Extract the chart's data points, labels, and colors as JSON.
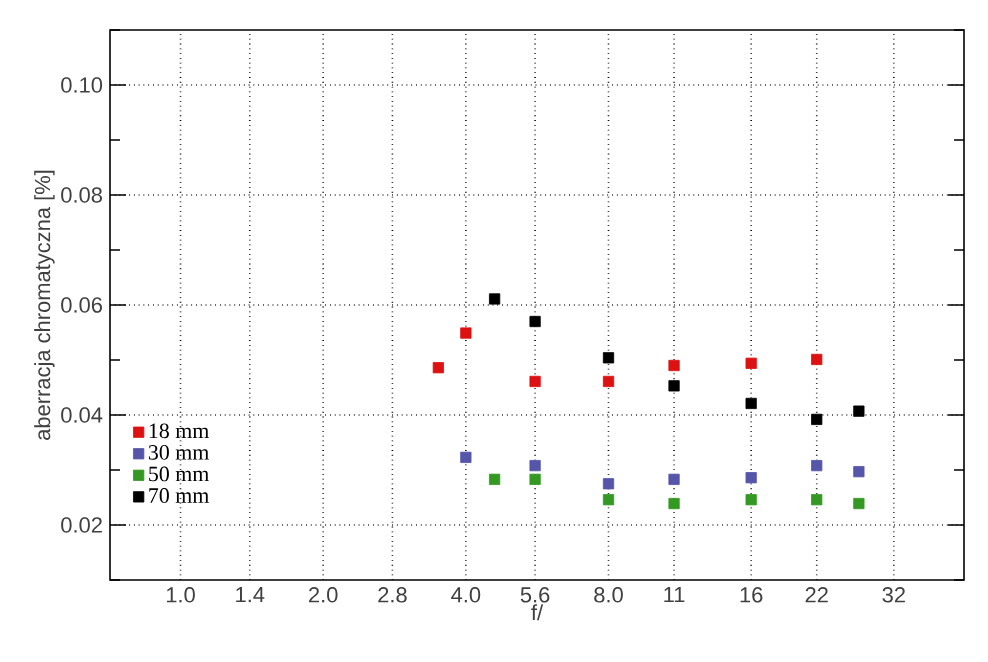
{
  "chart_data": {
    "type": "scatter",
    "xlabel": "f/",
    "ylabel": "aberracja chromatyczna [%]",
    "log": "x",
    "xlim": [
      0.71,
      45
    ],
    "ylim": [
      0.01,
      0.11
    ],
    "xticks": [
      {
        "value": 1,
        "label": "1.0"
      },
      1.4,
      {
        "value": 2,
        "label": "2.0"
      },
      2.8,
      {
        "value": 4,
        "label": "4.0"
      },
      5.6,
      {
        "value": 8,
        "label": "8.0"
      },
      11,
      16,
      22,
      32
    ],
    "yticks": [
      {
        "value": 0.01,
        "label": null
      },
      0.02,
      {
        "value": 0.03,
        "label": null
      },
      0.04,
      {
        "value": 0.05,
        "label": null
      },
      0.06,
      {
        "value": 0.07,
        "label": null
      },
      0.08,
      {
        "value": 0.09,
        "label": null
      },
      {
        "value": 0.1,
        "label": "0.10"
      },
      {
        "value": 0.11,
        "label": null
      }
    ],
    "grid": true,
    "legend": "bottom left",
    "marker": "square",
    "series": [
      {
        "name": "18 mm",
        "color": "#dd1111",
        "x": [
          3.5,
          4,
          5.6,
          8,
          11,
          16,
          22
        ],
        "values": [
          0.0486,
          0.0549,
          0.0461,
          0.0461,
          0.049,
          0.0494,
          0.0501
        ]
      },
      {
        "name": "30 mm",
        "color": "#5555aa",
        "x": [
          4,
          5.6,
          8,
          11,
          16,
          22,
          27
        ],
        "values": [
          0.0323,
          0.0308,
          0.0275,
          0.0283,
          0.0286,
          0.0308,
          0.0297
        ]
      },
      {
        "name": "50 mm",
        "color": "#339922",
        "x": [
          4.6,
          5.6,
          8,
          11,
          16,
          22,
          27
        ],
        "values": [
          0.0283,
          0.0283,
          0.0246,
          0.0239,
          0.0246,
          0.0246,
          0.0239
        ]
      },
      {
        "name": "70 mm",
        "color": "#000000",
        "x": [
          4.6,
          5.6,
          8,
          11,
          16,
          22,
          27
        ],
        "values": [
          0.0611,
          0.057,
          0.0504,
          0.0453,
          0.0421,
          0.0392,
          0.0407
        ]
      }
    ]
  }
}
